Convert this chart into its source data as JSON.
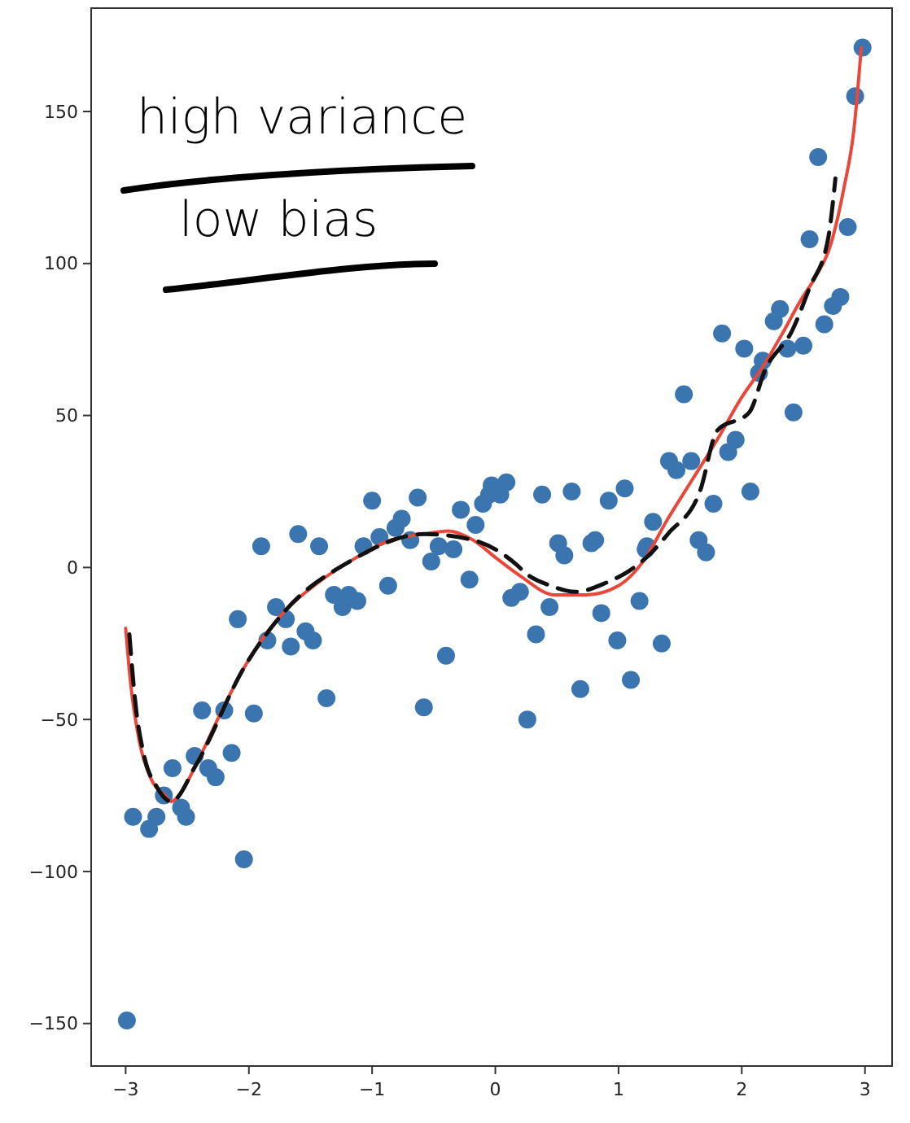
{
  "chart_data": {
    "type": "scatter",
    "xlim": [
      -3.28,
      3.22
    ],
    "ylim": [
      -164,
      184
    ],
    "xticks": [
      -3,
      -2,
      -1,
      0,
      1,
      2,
      3
    ],
    "yticks": [
      -150,
      -100,
      -50,
      0,
      50,
      100,
      150
    ],
    "grid": false,
    "annotations": [
      "high variance",
      "low bias"
    ],
    "series": [
      {
        "color": "#3b75af",
        "marker": "circle",
        "x": [
          -2.99,
          -2.94,
          -2.81,
          -2.75,
          -2.69,
          -2.62,
          -2.55,
          -2.51,
          -2.44,
          -2.38,
          -2.33,
          -2.27,
          -2.2,
          -2.14,
          -2.09,
          -2.04,
          -1.96,
          -1.9,
          -1.85,
          -1.78,
          -1.7,
          -1.66,
          -1.6,
          -1.54,
          -1.48,
          -1.43,
          -1.37,
          -1.31,
          -1.24,
          -1.19,
          -1.12,
          -1.07,
          -1.0,
          -0.94,
          -0.87,
          -0.81,
          -0.76,
          -0.69,
          -0.63,
          -0.58,
          -0.52,
          -0.46,
          -0.4,
          -0.34,
          -0.28,
          -0.21,
          -0.16,
          -0.1,
          -0.05,
          -0.03,
          0.04,
          0.09,
          0.13,
          0.2,
          0.26,
          0.33,
          0.38,
          0.44,
          0.51,
          0.56,
          0.62,
          0.69,
          0.78,
          0.81,
          0.86,
          0.92,
          0.99,
          1.05,
          1.1,
          1.17,
          1.22,
          1.23,
          1.28,
          1.35,
          1.41,
          1.47,
          1.53,
          1.59,
          1.65,
          1.71,
          1.77,
          1.84,
          1.89,
          1.95,
          2.02,
          2.07,
          2.14,
          2.17,
          2.26,
          2.31,
          2.37,
          2.42,
          2.5,
          2.55,
          2.62,
          2.67,
          2.74,
          2.8,
          2.86,
          2.92,
          2.98
        ],
        "values": [
          -149,
          -82,
          -86,
          -82,
          -75,
          -66,
          -79,
          -82,
          -62,
          -47,
          -66,
          -69,
          -47,
          -61,
          -17,
          -96,
          -48,
          7,
          -24,
          -13,
          -17,
          -26,
          11,
          -21,
          -24,
          7,
          -43,
          -9,
          -13,
          -9,
          -11,
          7,
          22,
          10,
          -6,
          13,
          16,
          9,
          23,
          -46,
          2,
          7,
          -29,
          6,
          19,
          -4,
          14,
          21,
          24,
          27,
          24,
          28,
          -10,
          -8,
          -50,
          -22,
          24,
          -13,
          8,
          4,
          25,
          -40,
          8,
          9,
          -15,
          22,
          -24,
          26,
          -37,
          -11,
          6,
          7,
          15,
          -25,
          35,
          32,
          57,
          35,
          9,
          5,
          21,
          77,
          38,
          42,
          72,
          25,
          64,
          68,
          81,
          85,
          72,
          51,
          73,
          108,
          135,
          80,
          86,
          89,
          112,
          155,
          171
        ]
      },
      {
        "type": "line",
        "color": "#e8473a",
        "marker": "none",
        "line_style": "solid",
        "x": [
          -3.0,
          -2.96,
          -2.89,
          -2.8,
          -2.68,
          -2.63,
          -2.55,
          -2.43,
          -2.23,
          -2.04,
          -1.9,
          -1.7,
          -1.44,
          -1.18,
          -0.85,
          -0.58,
          -0.38,
          -0.18,
          0.01,
          0.21,
          0.48,
          0.74,
          1.0,
          1.2,
          1.4,
          1.6,
          1.8,
          2.0,
          2.17,
          2.33,
          2.48,
          2.59,
          2.72,
          2.83,
          2.91,
          2.97
        ],
        "values": [
          -20,
          -38,
          -57,
          -69,
          -75,
          -77,
          -74,
          -65,
          -48,
          -33,
          -24,
          -14,
          -5,
          2,
          9,
          11,
          12,
          9,
          3,
          -3,
          -9,
          -9,
          -6,
          2,
          16,
          29,
          42,
          56,
          66,
          77,
          88,
          95,
          106,
          125,
          144,
          171
        ]
      },
      {
        "type": "line",
        "color": "#111111",
        "marker": "none",
        "line_style": "dashed",
        "x": [
          -2.97,
          -2.92,
          -2.85,
          -2.75,
          -2.63,
          -2.43,
          -2.04,
          -1.7,
          -1.18,
          -0.58,
          -0.18,
          0.17,
          0.25,
          0.45,
          0.65,
          0.9,
          1.09,
          1.27,
          1.4,
          1.66,
          1.8,
          2.06,
          2.19,
          2.41,
          2.55,
          2.7,
          2.76
        ],
        "values": [
          -22,
          -45,
          -62,
          -72,
          -77,
          -65,
          -33,
          -14,
          2,
          11,
          9,
          1,
          -2,
          -6,
          -8,
          -5,
          -1,
          5,
          11,
          25,
          45,
          51,
          65,
          78,
          92,
          108,
          128
        ]
      }
    ]
  }
}
